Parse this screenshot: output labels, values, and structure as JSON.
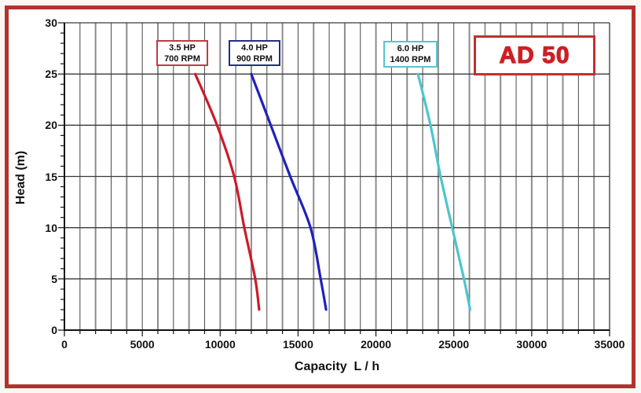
{
  "header": {
    "model_label": "AD 50"
  },
  "chart_data": {
    "type": "line",
    "title": "AD 50",
    "xlabel": "Capacity  L / h",
    "ylabel": "Head (m)",
    "xlim": [
      0,
      35000
    ],
    "ylim": [
      0,
      30
    ],
    "x_tick_values": [
      0,
      5000,
      10000,
      15000,
      20000,
      25000,
      30000,
      35000
    ],
    "x_tick_labels": [
      "0",
      "5000",
      "10000",
      "15000",
      "20000",
      "25000",
      "30000",
      "35000"
    ],
    "x_minor_step": 1000,
    "y_tick_values": [
      0,
      5,
      10,
      15,
      20,
      25,
      30
    ],
    "y_tick_labels": [
      "0",
      "5",
      "10",
      "15",
      "20",
      "25",
      "30"
    ],
    "y_minor_step": 1,
    "grid": {
      "vertical_minor_every": 1000,
      "horizontal_major_every": 5
    },
    "legend_position": "inside-top",
    "series": [
      {
        "name": "3.5 HP 700 RPM",
        "label_line1": "3.5 HP",
        "label_line2": "700 RPM",
        "color": "#ce1a28",
        "box_color": "#c13a40",
        "points_capacity_lh": [
          8400,
          9800,
          10900,
          11550,
          12250,
          12500
        ],
        "points_head_m": [
          25,
          20,
          15,
          10,
          5,
          2
        ]
      },
      {
        "name": "4.0 HP 900 RPM",
        "label_line1": "4.0 HP",
        "label_line2": "900 RPM",
        "color": "#2121bd",
        "box_color": "#23307f",
        "points_capacity_lh": [
          12000,
          13250,
          14500,
          15800,
          16450,
          16800
        ],
        "points_head_m": [
          25,
          20,
          15,
          10,
          5,
          2
        ]
      },
      {
        "name": "6.0 HP 1400 RPM",
        "label_line1": "6.0 HP",
        "label_line2": "1400 RPM",
        "color": "#4cc5cd",
        "box_color": "#58c5cb",
        "points_capacity_lh": [
          22700,
          23500,
          24150,
          24900,
          25650,
          26050
        ],
        "points_head_m": [
          25,
          20,
          15,
          10,
          5,
          2
        ]
      }
    ]
  }
}
